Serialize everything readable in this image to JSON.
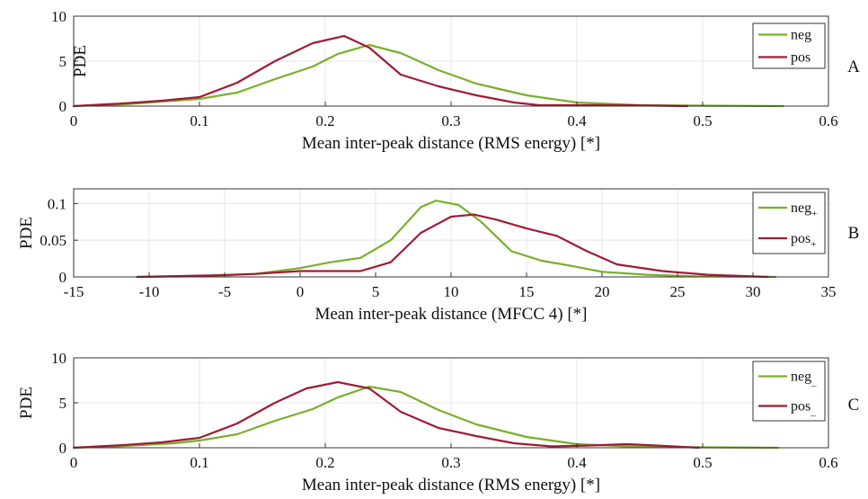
{
  "colors": {
    "neg": "#77b02a",
    "pos": "#a01b35"
  },
  "chart_data": [
    {
      "type": "line",
      "panel_label": "A",
      "ylabel": "PDE",
      "xlabel": "Mean inter-peak distance (RMS energy) [*]",
      "xlim": [
        0,
        0.6
      ],
      "ylim": [
        0,
        10
      ],
      "xticks": [
        0,
        0.1,
        0.2,
        0.3,
        0.4,
        0.5,
        0.6
      ],
      "xtick_labels": [
        "0",
        "0.1",
        "0.2",
        "0.3",
        "0.4",
        "0.5",
        "0.6"
      ],
      "yticks": [
        0,
        5,
        10
      ],
      "ytick_labels": [
        "0",
        "5",
        "10"
      ],
      "grid": true,
      "legend_position": "top-right",
      "series": [
        {
          "name": "neg",
          "base": "neg",
          "sub": "",
          "x": [
            0,
            0.04,
            0.08,
            0.1,
            0.13,
            0.16,
            0.19,
            0.21,
            0.235,
            0.26,
            0.29,
            0.32,
            0.36,
            0.4,
            0.45,
            0.5,
            0.564
          ],
          "y": [
            0,
            0.2,
            0.6,
            0.8,
            1.5,
            3.0,
            4.4,
            5.8,
            6.8,
            5.9,
            4.0,
            2.5,
            1.2,
            0.4,
            0.1,
            0.05,
            0
          ]
        },
        {
          "name": "pos",
          "base": "pos",
          "sub": "",
          "x": [
            0,
            0.04,
            0.07,
            0.1,
            0.13,
            0.16,
            0.19,
            0.215,
            0.235,
            0.26,
            0.29,
            0.32,
            0.35,
            0.37,
            0.4,
            0.44,
            0.488
          ],
          "y": [
            0,
            0.3,
            0.6,
            1.0,
            2.6,
            5.0,
            7.0,
            7.8,
            6.5,
            3.5,
            2.2,
            1.2,
            0.4,
            0.1,
            0.1,
            0.1,
            0
          ]
        }
      ]
    },
    {
      "type": "line",
      "panel_label": "B",
      "ylabel": "PDE",
      "xlabel": "Mean inter-peak distance (MFCC 4) [*]",
      "xlim": [
        -15,
        35
      ],
      "ylim": [
        0,
        0.12
      ],
      "xticks": [
        -15,
        -10,
        -5,
        0,
        5,
        10,
        15,
        20,
        25,
        30,
        35
      ],
      "xtick_labels": [
        "-15",
        "-10",
        "-5",
        "0",
        "5",
        "10",
        "15",
        "20",
        "25",
        "30",
        "35"
      ],
      "yticks": [
        0,
        0.05,
        0.1
      ],
      "ytick_labels": [
        "0",
        "0.05",
        "0.1"
      ],
      "grid": true,
      "legend_position": "top-right",
      "series": [
        {
          "name": "neg+",
          "base": "neg",
          "sub": "+",
          "x": [
            -10.8,
            -6,
            -3,
            0,
            2,
            4,
            6,
            8,
            9,
            10.5,
            12,
            14,
            16,
            18,
            20,
            23,
            26,
            31.5
          ],
          "y": [
            0,
            0.001,
            0.004,
            0.012,
            0.02,
            0.026,
            0.05,
            0.095,
            0.104,
            0.098,
            0.075,
            0.035,
            0.022,
            0.015,
            0.007,
            0.003,
            0.001,
            0
          ]
        },
        {
          "name": "pos+",
          "base": "pos",
          "sub": "+",
          "x": [
            -10.8,
            -6,
            -3,
            0,
            2,
            4,
            6,
            8,
            10,
            11.5,
            13,
            15,
            17,
            19,
            21,
            24,
            27,
            31
          ],
          "y": [
            0,
            0.002,
            0.004,
            0.008,
            0.008,
            0.008,
            0.02,
            0.06,
            0.082,
            0.085,
            0.078,
            0.066,
            0.056,
            0.035,
            0.017,
            0.008,
            0.003,
            0
          ]
        }
      ]
    },
    {
      "type": "line",
      "panel_label": "C",
      "ylabel": "PDE",
      "xlabel": "Mean inter-peak distance (RMS energy) [*]",
      "xlim": [
        0,
        0.6
      ],
      "ylim": [
        0,
        10
      ],
      "xticks": [
        0,
        0.1,
        0.2,
        0.3,
        0.4,
        0.5,
        0.6
      ],
      "xtick_labels": [
        "0",
        "0.1",
        "0.2",
        "0.3",
        "0.4",
        "0.5",
        "0.6"
      ],
      "yticks": [
        0,
        5,
        10
      ],
      "ytick_labels": [
        "0",
        "5",
        "10"
      ],
      "grid": true,
      "legend_position": "top-right",
      "series": [
        {
          "name": "neg_",
          "base": "neg",
          "sub": "_",
          "x": [
            0,
            0.04,
            0.08,
            0.1,
            0.13,
            0.16,
            0.19,
            0.21,
            0.235,
            0.26,
            0.29,
            0.32,
            0.36,
            0.4,
            0.45,
            0.5,
            0.56
          ],
          "y": [
            0,
            0.2,
            0.5,
            0.8,
            1.5,
            3.0,
            4.3,
            5.6,
            6.8,
            6.2,
            4.2,
            2.6,
            1.2,
            0.4,
            0.1,
            0.05,
            0
          ]
        },
        {
          "name": "pos_",
          "base": "pos",
          "sub": "_",
          "x": [
            0,
            0.04,
            0.07,
            0.1,
            0.13,
            0.16,
            0.185,
            0.21,
            0.235,
            0.26,
            0.29,
            0.32,
            0.35,
            0.38,
            0.41,
            0.44,
            0.47,
            0.497
          ],
          "y": [
            0,
            0.3,
            0.6,
            1.1,
            2.7,
            5.0,
            6.6,
            7.3,
            6.6,
            4.0,
            2.2,
            1.3,
            0.5,
            0.15,
            0.25,
            0.4,
            0.2,
            0
          ]
        }
      ]
    }
  ]
}
